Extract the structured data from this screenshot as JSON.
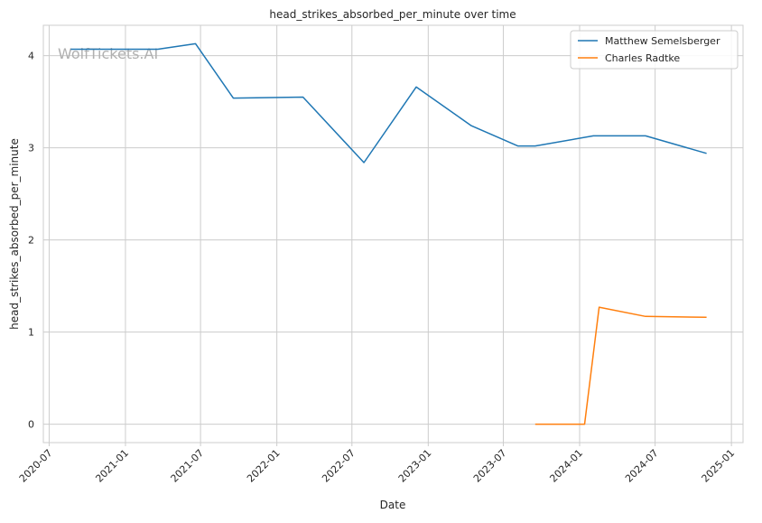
{
  "chart_data": {
    "type": "line",
    "title": "head_strikes_absorbed_per_minute over time",
    "xlabel": "Date",
    "ylabel": "head_strikes_absorbed_per_minute",
    "watermark": "WolfTickets.AI",
    "x_ticks": [
      "2020-07",
      "2021-01",
      "2021-07",
      "2022-01",
      "2022-07",
      "2023-01",
      "2023-07",
      "2024-01",
      "2024-07",
      "2025-01"
    ],
    "y_ticks": [
      "0",
      "1",
      "2",
      "3",
      "4"
    ],
    "xlim": [
      "2020-06-17",
      "2025-01-29"
    ],
    "ylim": [
      -0.2,
      4.33
    ],
    "grid": true,
    "legend_position": "top-right",
    "series": [
      {
        "name": "Matthew Semelsberger",
        "color": "#1f77b4",
        "points": [
          {
            "x": "2020-08-22",
            "y": 4.07
          },
          {
            "x": "2021-03-20",
            "y": 4.07
          },
          {
            "x": "2021-06-19",
            "y": 4.13
          },
          {
            "x": "2021-09-18",
            "y": 3.54
          },
          {
            "x": "2022-03-05",
            "y": 3.55
          },
          {
            "x": "2022-07-30",
            "y": 2.84
          },
          {
            "x": "2022-12-03",
            "y": 3.66
          },
          {
            "x": "2023-04-15",
            "y": 3.24
          },
          {
            "x": "2023-08-05",
            "y": 3.02
          },
          {
            "x": "2023-09-16",
            "y": 3.02
          },
          {
            "x": "2024-02-03",
            "y": 3.13
          },
          {
            "x": "2024-06-08",
            "y": 3.13
          },
          {
            "x": "2024-11-02",
            "y": 2.94
          }
        ]
      },
      {
        "name": "Charles Radtke",
        "color": "#ff7f0e",
        "points": [
          {
            "x": "2023-09-16",
            "y": 0.0
          },
          {
            "x": "2024-01-13",
            "y": 0.0
          },
          {
            "x": "2024-02-17",
            "y": 1.27
          },
          {
            "x": "2024-06-08",
            "y": 1.17
          },
          {
            "x": "2024-11-02",
            "y": 1.16
          }
        ]
      }
    ]
  }
}
